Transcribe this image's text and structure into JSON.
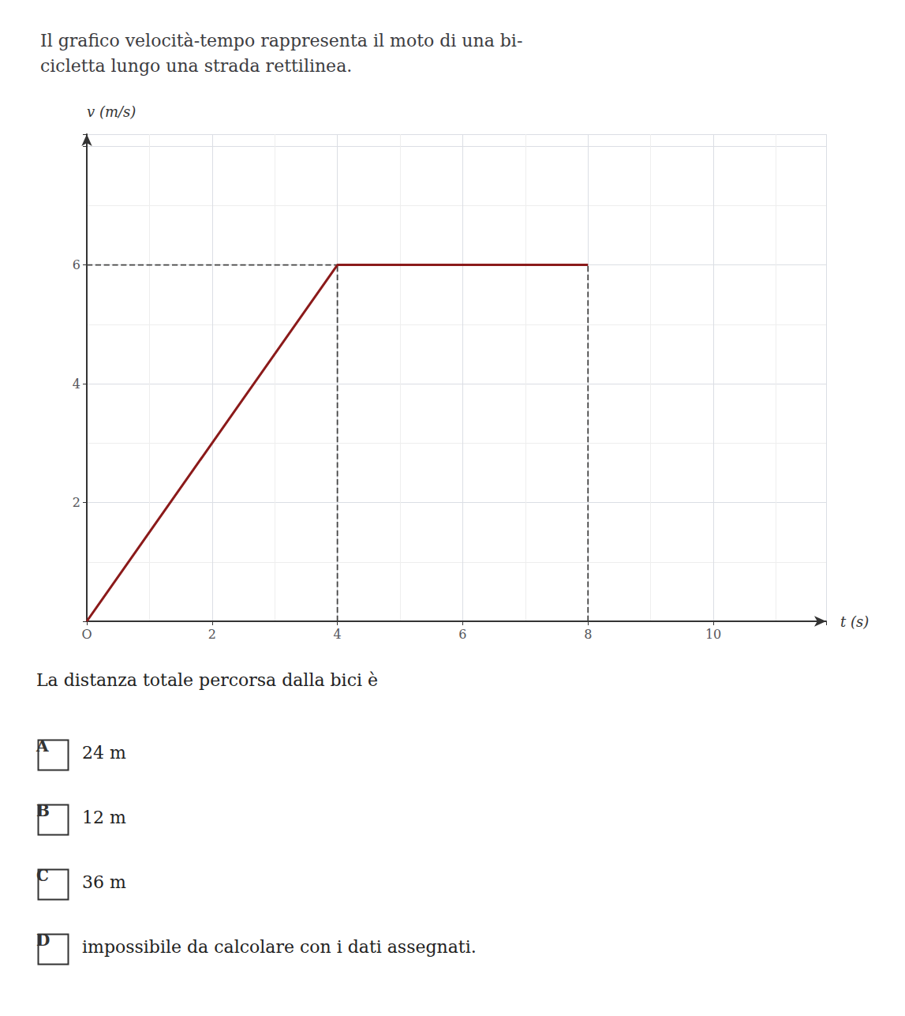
{
  "chart_data": {
    "type": "line",
    "title": "Il grafico velocità-tempo rappresenta il moto di una bi-\ncicletta lungo una strada rettilinea.",
    "xlabel": "t (s)",
    "ylabel": "v (m/s)",
    "series": [
      {
        "x": [
          0,
          4,
          8
        ],
        "values": [
          0,
          6,
          6
        ],
        "color": "#8b1a1a",
        "line_style": "solid"
      },
      {
        "x": [
          0,
          4
        ],
        "values": [
          6,
          6
        ],
        "color": "#444444",
        "line_style": "dashed"
      },
      {
        "x": [
          4,
          4
        ],
        "values": [
          0,
          6
        ],
        "color": "#444444",
        "line_style": "dashed"
      },
      {
        "x": [
          8,
          8
        ],
        "values": [
          0,
          6
        ],
        "color": "#444444",
        "line_style": "dashed"
      }
    ],
    "xlim": [
      0,
      11.8
    ],
    "xticks": [
      {
        "value": 0,
        "label": "O"
      },
      2,
      4,
      6,
      8,
      10
    ],
    "ylim": [
      0,
      8.2
    ],
    "yticks": [
      2,
      4,
      6
    ],
    "grid": true,
    "annotations": [
      "La distanza totale percorsa dalla bici è",
      "A",
      "24 m",
      "B",
      "12 m",
      "C",
      "36 m",
      "D",
      "impossibile da calcolare con i dati assegnati."
    ]
  }
}
